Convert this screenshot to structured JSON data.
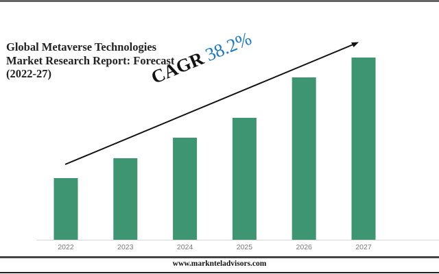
{
  "chart_data": {
    "type": "bar",
    "title": "Global Metaverse Technologies Market Research Report: Forecast (2022-27)",
    "title_lines": [
      "Global Metaverse Technologies",
      "Market Research Report: Forecast",
      "(2022-27)"
    ],
    "categories": [
      "2022",
      "2023",
      "2024",
      "2025",
      "2026",
      "2027"
    ],
    "values": [
      90,
      119,
      149,
      178,
      237,
      266
    ],
    "value_units": "relative (no y-axis shown)",
    "ylim": [
      0,
      300
    ],
    "xlabel": "",
    "ylabel": "",
    "grid": false,
    "bar_color": "#3d9671",
    "annotation": {
      "label": "CAGR",
      "value": "38.2%",
      "value_color": "#1a78c2",
      "arrow": "upward trend"
    }
  },
  "footer": {
    "url": "www.marknteladvisors.com"
  }
}
